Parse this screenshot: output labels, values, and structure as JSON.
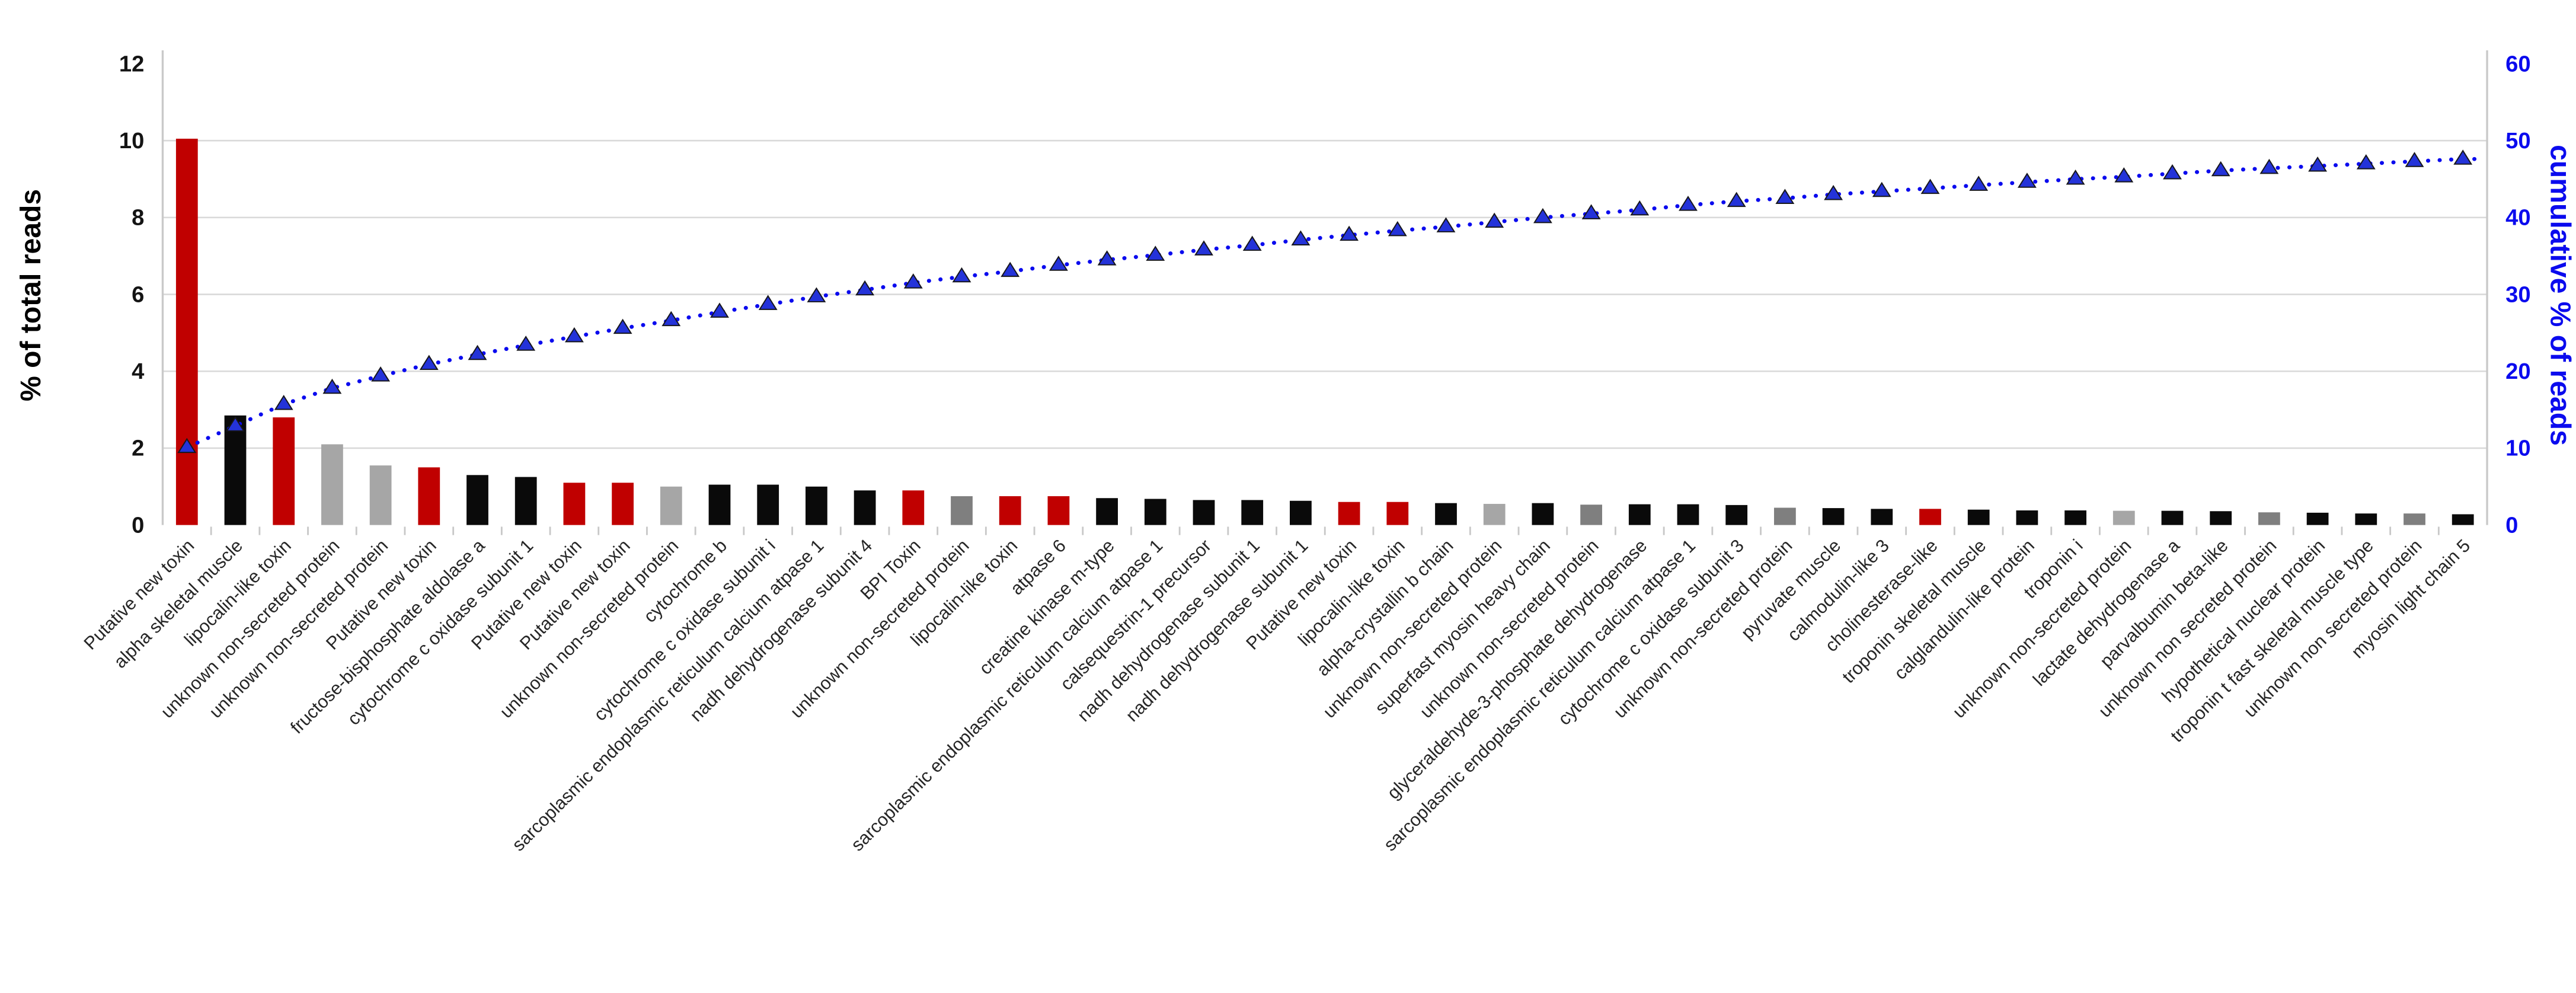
{
  "chart_data": {
    "type": "pareto (bar + cumulative line)",
    "title": "",
    "legend": "none",
    "grid": "horizontal light gray",
    "left_axis": {
      "label": "% of total reads",
      "min": 0,
      "max": 12,
      "ticks": [
        0,
        2,
        4,
        6,
        8,
        10,
        12
      ]
    },
    "right_axis": {
      "label": "cumulative % of reads",
      "min": 0,
      "max": 60,
      "ticks": [
        0,
        10,
        20,
        30,
        40,
        50,
        60
      ]
    },
    "palette": {
      "red": "#c00000",
      "black": "#0a0a0a",
      "gray_light": "#a6a6a6",
      "gray_medium": "#7f7f7f",
      "line_blue": "#0b0bee",
      "marker_blue": "#2433d9"
    },
    "categories": [
      "Putative new toxin",
      "alpha skeletal muscle",
      "lipocalin-like toxin",
      "unknown non-secreted protein",
      "unknown non-secreted protein",
      "Putative new toxin",
      "fructose-bisphosphate aldolase a",
      "cytochrome c oxidase subunit 1",
      "Putative new toxin",
      "Putative new toxin",
      "unknown non-secreted protein",
      "cytochrome b",
      "cytochrome c oxidase subunit i",
      "sarcoplasmic endoplasmic reticulum calcium atpase 1",
      "nadh dehydrogenase subunit 4",
      "BPI Toxin",
      "unknown non-secreted protein",
      "lipocalin-like toxin",
      "atpase 6",
      "creatine kinase m-type",
      "sarcoplasmic endoplasmic reticulum calcium atpase 1",
      "calsequestrin-1 precursor",
      "nadh dehydrogenase subunit 1",
      "nadh dehydrogenase subunit 1",
      "Putative new toxin",
      "lipocalin-like toxin",
      "alpha-crystallin b chain",
      "unknown non-secreted protein",
      "superfast myosin heavy chain",
      "unknown non-secreted protein",
      "glyceraldehyde-3-phosphate dehydrogenase",
      "sarcoplasmic endoplasmic reticulum calcium atpase 1",
      "cytochrome c oxidase subunit 3",
      "unknown non-secreted protein",
      "pyruvate muscle",
      "calmodulin-like 3",
      "cholinesterase-like",
      "troponin skeletal muscle",
      "calglandulin-like protein",
      "troponin i",
      "unknown non-secreted protein",
      "lactate dehydrogenase a",
      "parvalbumin beta-like",
      "unknown non secreted protein",
      "hypothetical nuclear protein",
      "troponin t fast skeletal muscle type",
      "unknown non secreted protein",
      "myosin light chain 5"
    ],
    "series": [
      {
        "name": "% of total reads",
        "type": "bar",
        "axis": "left",
        "values": [
          10.05,
          2.85,
          2.8,
          2.1,
          1.55,
          1.5,
          1.3,
          1.25,
          1.1,
          1.1,
          1.0,
          1.05,
          1.05,
          1.0,
          0.9,
          0.9,
          0.75,
          0.75,
          0.75,
          0.7,
          0.68,
          0.65,
          0.65,
          0.63,
          0.6,
          0.6,
          0.57,
          0.55,
          0.57,
          0.53,
          0.54,
          0.54,
          0.52,
          0.45,
          0.44,
          0.42,
          0.42,
          0.4,
          0.38,
          0.38,
          0.37,
          0.37,
          0.36,
          0.33,
          0.32,
          0.3,
          0.3,
          0.28
        ],
        "color_keys": [
          "red",
          "black",
          "red",
          "gray_light",
          "gray_light",
          "red",
          "black",
          "black",
          "red",
          "red",
          "gray_light",
          "black",
          "black",
          "black",
          "black",
          "red",
          "gray_medium",
          "red",
          "red",
          "black",
          "black",
          "black",
          "black",
          "black",
          "red",
          "red",
          "black",
          "gray_light",
          "black",
          "gray_medium",
          "black",
          "black",
          "black",
          "gray_medium",
          "black",
          "black",
          "red",
          "black",
          "black",
          "black",
          "gray_light",
          "black",
          "black",
          "gray_medium",
          "black",
          "black",
          "gray_medium",
          "black"
        ]
      },
      {
        "name": "cumulative % of reads",
        "type": "line",
        "axis": "right",
        "marker": "triangle-up",
        "style": "dotted",
        "values": [
          10.1,
          12.9,
          15.7,
          17.8,
          19.4,
          20.9,
          22.2,
          23.4,
          24.5,
          25.6,
          26.6,
          27.7,
          28.7,
          29.7,
          30.6,
          31.5,
          32.3,
          33.0,
          33.8,
          34.5,
          35.1,
          35.8,
          36.4,
          37.1,
          37.7,
          38.3,
          38.8,
          39.4,
          40.0,
          40.5,
          41.0,
          41.6,
          42.1,
          42.5,
          43.0,
          43.4,
          43.8,
          44.2,
          44.6,
          45.0,
          45.3,
          45.7,
          46.1,
          46.4,
          46.7,
          47.0,
          47.3,
          47.6
        ]
      }
    ]
  }
}
